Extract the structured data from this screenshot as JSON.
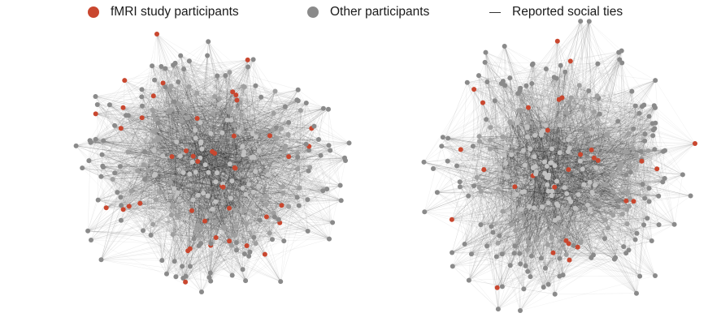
{
  "legend": {
    "items": [
      {
        "label": "fMRI study participants",
        "symbol": "dot",
        "color": "#c9472f"
      },
      {
        "label": "Other participants",
        "symbol": "dot",
        "color": "#8a8a8a"
      },
      {
        "label": "Reported social ties",
        "symbol": "line",
        "color": "#333333"
      }
    ]
  },
  "networks": [
    {
      "name": "",
      "highlight_color": "#c9472f",
      "node_color": "#8a8a8a"
    },
    {
      "name": "",
      "highlight_color": "#c9472f",
      "node_color": "#8a8a8a"
    }
  ]
}
